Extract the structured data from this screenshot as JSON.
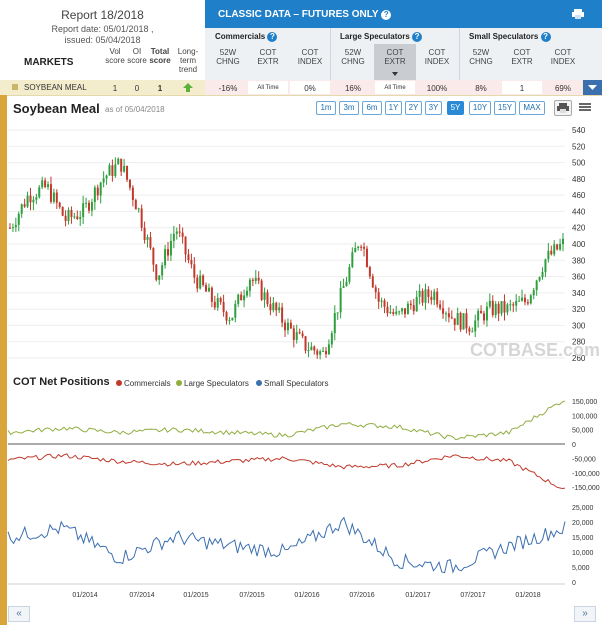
{
  "report": {
    "title": "Report 18/2018",
    "date": "Report date: 05/01/2018 ,",
    "issued": "issued: 05/04/2018"
  },
  "markets_label": "MARKETS",
  "score_headers": {
    "vol": "Vol score",
    "oi": "OI score",
    "total": "Total score",
    "trend": "Long-term trend"
  },
  "classic": {
    "title": "CLASSIC DATA – FUTURES ONLY",
    "help_icon": "question-icon",
    "print_icon": "printer-icon"
  },
  "groups": [
    {
      "name": "Commercials",
      "cols": [
        "52W CHNG",
        "COT EXTR",
        "COT INDEX"
      ]
    },
    {
      "name": "Large Speculators",
      "cols": [
        "52W CHNG",
        "COT EXTR",
        "COT INDEX"
      ]
    },
    {
      "name": "Small Speculators",
      "cols": [
        "52W CHNG",
        "COT EXTR",
        "COT INDEX"
      ]
    }
  ],
  "row": {
    "market": "SOYBEAN MEAL",
    "vol": "1",
    "oi": "0",
    "total": "1",
    "trend_icon": "arrow-up-icon",
    "comm_chng": "-16%",
    "comm_extr": "All Time",
    "comm_index": "0%",
    "ls_chng": "16%",
    "ls_extr": "All Time",
    "ls_index": "100%",
    "ss_chng": "8%",
    "ss_extr": "1",
    "ss_index": "69%"
  },
  "chart": {
    "title": "Soybean Meal",
    "asof": "as of 05/04/2018",
    "ranges": [
      "1m",
      "3m",
      "6m",
      "1Y",
      "2Y",
      "3Y",
      "5Y",
      "10Y",
      "15Y",
      "MAX"
    ],
    "selected_range": "5Y",
    "watermark": "COTBASE.com"
  },
  "cot": {
    "title": "COT Net Positions",
    "legend": [
      "Commercials",
      "Large Speculators",
      "Small Speculators"
    ],
    "colors": {
      "commercials": "#c0392b",
      "large": "#8fad3f",
      "small": "#3c6fb0"
    }
  },
  "x_labels": [
    "01/2014",
    "07/2014",
    "01/2015",
    "07/2015",
    "01/2016",
    "07/2016",
    "01/2017",
    "07/2017",
    "01/2018"
  ],
  "nav": {
    "left": "«",
    "right": "»"
  },
  "chart_data": [
    {
      "type": "candlestick",
      "title": "Soybean Meal",
      "x": [
        "2013-05",
        "2013-07",
        "2013-09",
        "2013-11",
        "2014-01",
        "2014-03",
        "2014-05",
        "2014-07",
        "2014-09",
        "2014-11",
        "2015-01",
        "2015-03",
        "2015-05",
        "2015-07",
        "2015-09",
        "2015-11",
        "2016-01",
        "2016-03",
        "2016-05",
        "2016-07",
        "2016-09",
        "2016-11",
        "2017-01",
        "2017-03",
        "2017-05",
        "2017-07",
        "2017-09",
        "2017-11",
        "2018-01",
        "2018-03",
        "2018-05"
      ],
      "close": [
        420,
        460,
        470,
        430,
        440,
        480,
        500,
        440,
        360,
        420,
        360,
        330,
        310,
        360,
        330,
        300,
        275,
        265,
        340,
        410,
        330,
        310,
        330,
        340,
        310,
        300,
        320,
        320,
        330,
        380,
        400
      ],
      "yticks": [
        260,
        280,
        300,
        320,
        340,
        360,
        380,
        400,
        420,
        440,
        460,
        480,
        500,
        520,
        540
      ],
      "ylim": [
        255,
        545
      ]
    },
    {
      "type": "line",
      "title": "COT Net Positions",
      "x": [
        "2013-05",
        "2013-11",
        "2014-05",
        "2014-11",
        "2015-05",
        "2015-11",
        "2016-05",
        "2016-11",
        "2017-05",
        "2017-11",
        "2018-05"
      ],
      "series": [
        {
          "name": "Commercials",
          "values": [
            -55000,
            -40000,
            -60000,
            -70000,
            -60000,
            -50000,
            -80000,
            -75000,
            -40000,
            -60000,
            -160000
          ]
        },
        {
          "name": "Large Speculators",
          "values": [
            40000,
            55000,
            40000,
            50000,
            40000,
            30000,
            70000,
            60000,
            20000,
            40000,
            155000
          ]
        },
        {
          "name": "Small Speculators",
          "values": [
            15000,
            18000,
            8000,
            15000,
            12000,
            10000,
            20000,
            7000,
            5000,
            12000,
            18000
          ]
        }
      ],
      "yticks_main": [
        -150000,
        -100000,
        -50000,
        0,
        50000,
        100000,
        150000
      ],
      "yticks_small": [
        0,
        5000,
        10000,
        15000,
        20000,
        25000
      ]
    }
  ]
}
